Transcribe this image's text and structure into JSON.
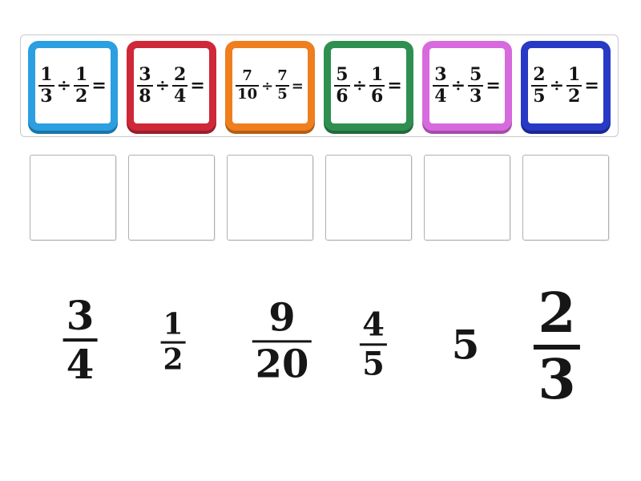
{
  "questions": [
    {
      "dividend_num": "1",
      "dividend_den": "3",
      "op": "÷",
      "divisor_num": "1",
      "divisor_den": "2",
      "eq": "=",
      "border_color": "#2b9fe0",
      "shadow_color": "#1c74a8"
    },
    {
      "dividend_num": "3",
      "dividend_den": "8",
      "op": "÷",
      "divisor_num": "2",
      "divisor_den": "4",
      "eq": "=",
      "border_color": "#cf2838",
      "shadow_color": "#97202b"
    },
    {
      "dividend_num": "7",
      "dividend_den": "10",
      "op": "÷",
      "divisor_num": "7",
      "divisor_den": "5",
      "eq": "=",
      "border_color": "#ef7e1e",
      "shadow_color": "#b55e13"
    },
    {
      "dividend_num": "5",
      "dividend_den": "6",
      "op": "÷",
      "divisor_num": "1",
      "divisor_den": "6",
      "eq": "=",
      "border_color": "#2f8f50",
      "shadow_color": "#226b3b"
    },
    {
      "dividend_num": "3",
      "dividend_den": "4",
      "op": "÷",
      "divisor_num": "5",
      "divisor_den": "3",
      "eq": "=",
      "border_color": "#d76add",
      "shadow_color": "#a44caa"
    },
    {
      "dividend_num": "2",
      "dividend_den": "5",
      "op": "÷",
      "divisor_num": "1",
      "divisor_den": "2",
      "eq": "=",
      "border_color": "#2839c6",
      "shadow_color": "#1b2790"
    }
  ],
  "slot_count": 6,
  "answers": [
    {
      "numerator": "3",
      "denominator": "4"
    },
    {
      "numerator": "1",
      "denominator": "2"
    },
    {
      "numerator": "9",
      "denominator": "20"
    },
    {
      "numerator": "4",
      "denominator": "5"
    },
    {
      "value": "5"
    },
    {
      "numerator": "2",
      "denominator": "3"
    }
  ]
}
